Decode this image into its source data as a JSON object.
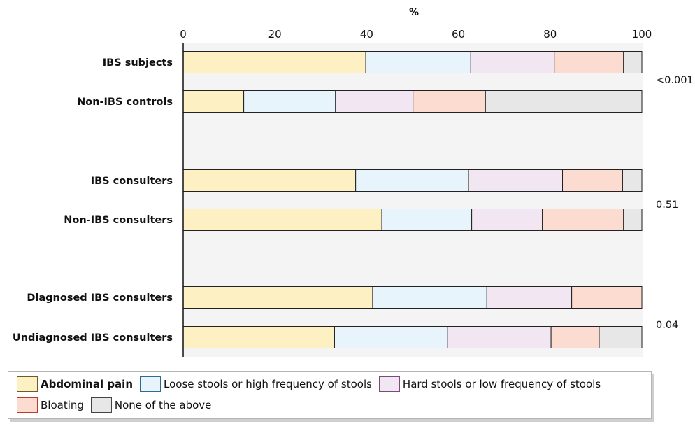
{
  "chart_data": {
    "type": "bar",
    "orientation": "horizontal",
    "stacked": true,
    "xlabel": "%",
    "xlim": [
      0,
      100
    ],
    "xticks": [
      0,
      20,
      40,
      60,
      80,
      100
    ],
    "categories": [
      "IBS subjects",
      "Non-IBS controls",
      "IBS consulters",
      "Non-IBS consulters",
      "Diagnosed IBS consulters",
      "Undiagnosed IBS consulters"
    ],
    "series": [
      {
        "name": "Abdominal pain",
        "values": [
          39.8,
          13.2,
          37.6,
          43.3,
          41.3,
          33.0
        ],
        "color": "#fdf0c2",
        "edge": "#6b5a2a"
      },
      {
        "name": "Loose stools or high frequency of stools",
        "values": [
          22.9,
          20.0,
          24.6,
          19.6,
          24.9,
          24.6
        ],
        "color": "#e7f4fb",
        "edge": "#2a6b8f"
      },
      {
        "name": "Hard stools or low frequency of stools",
        "values": [
          18.2,
          16.9,
          20.5,
          15.4,
          18.5,
          22.6
        ],
        "color": "#f1e6f1",
        "edge": "#7a4a7a"
      },
      {
        "name": "Bloating",
        "values": [
          15.1,
          15.8,
          13.1,
          17.7,
          15.3,
          10.5
        ],
        "color": "#fcdcd0",
        "edge": "#c0392b"
      },
      {
        "name": "None of the above",
        "values": [
          4.0,
          34.1,
          4.2,
          4.0,
          0.0,
          9.3
        ],
        "color": "#e7e7e7",
        "edge": "#444444"
      }
    ],
    "groups": [
      {
        "categories": [
          "IBS subjects",
          "Non-IBS controls"
        ],
        "p_value": "<0.001"
      },
      {
        "categories": [
          "IBS consulters",
          "Non-IBS consulters"
        ],
        "p_value": "0.51"
      },
      {
        "categories": [
          "Diagnosed IBS consulters",
          "Undiagnosed IBS consulters"
        ],
        "p_value": "0.04"
      }
    ],
    "legend_position": "bottom",
    "grid": false
  }
}
